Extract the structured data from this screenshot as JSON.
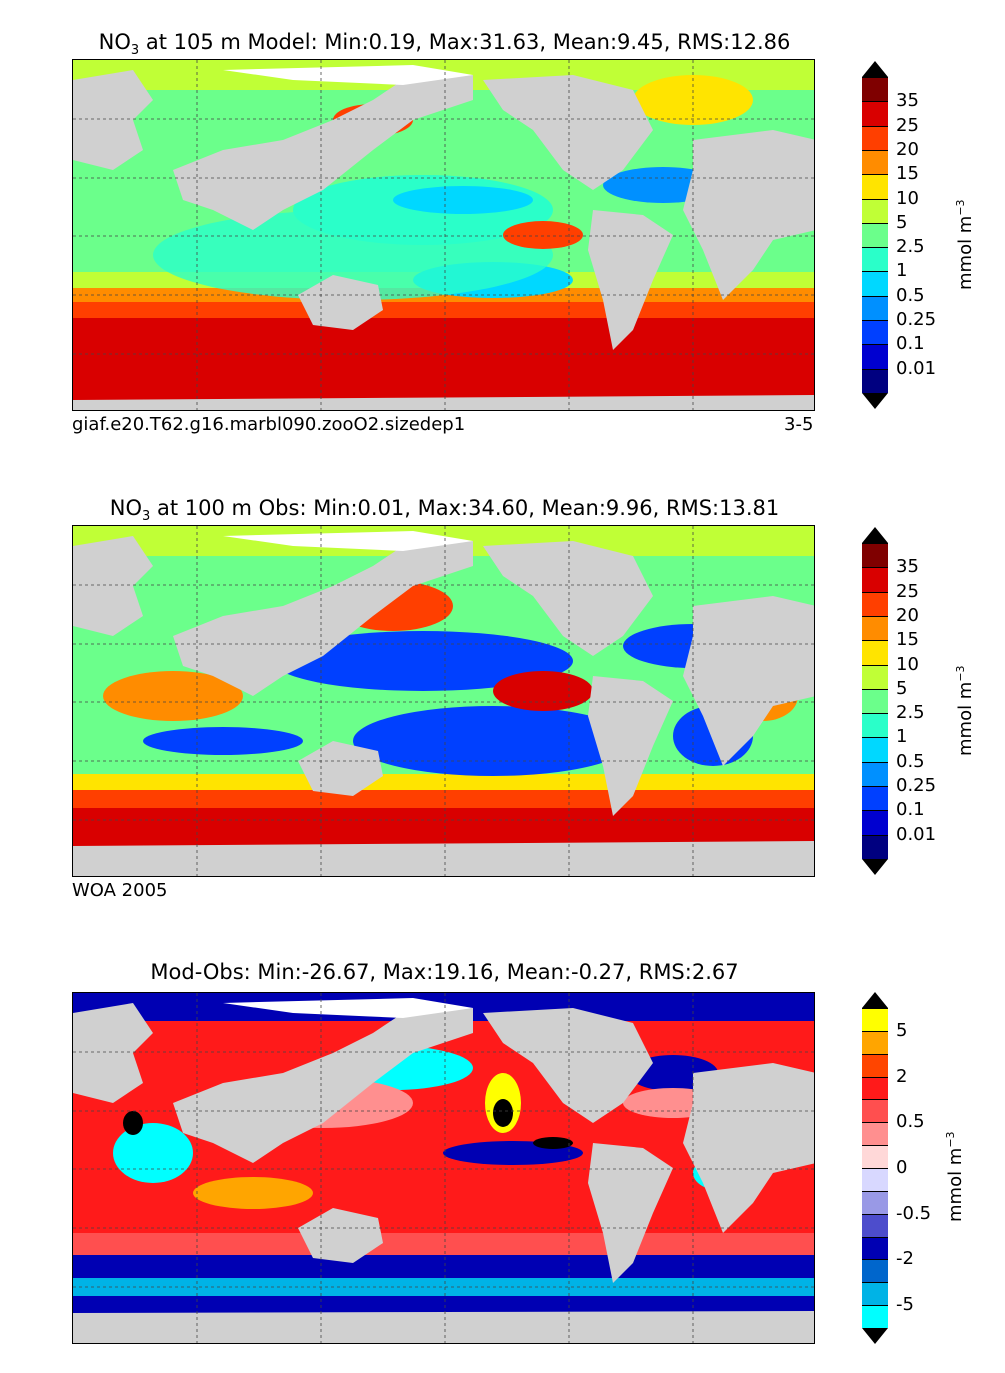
{
  "panels": [
    {
      "title_prefix": "NO",
      "title_sub": "3",
      "title_rest": " at 105 m Model: Min:0.19, Max:31.63, Mean:9.45, RMS:12.86",
      "caption_left": "giaf.e20.T62.g16.marbl090.zooO2.sizedep1",
      "caption_right": "3-5",
      "colorbar": {
        "ticks": [
          "35",
          "25",
          "20",
          "15",
          "10",
          "5",
          "2.5",
          "1",
          "0.5",
          "0.25",
          "0.1",
          "0.01"
        ],
        "colors": [
          "#7f0000",
          "#d90000",
          "#ff3f00",
          "#ff8c00",
          "#ffe400",
          "#c0ff36",
          "#6bff8b",
          "#2affc9",
          "#00d8ff",
          "#0090ff",
          "#0040ff",
          "#0000d0",
          "#000080"
        ],
        "unit": "mmol m",
        "unit_sup": "−3"
      }
    },
    {
      "title_prefix": "NO",
      "title_sub": "3",
      "title_rest": " at 100 m Obs: Min:0.01, Max:34.60, Mean:9.96, RMS:13.81",
      "caption_left": "WOA 2005",
      "caption_right": "",
      "colorbar": {
        "ticks": [
          "35",
          "25",
          "20",
          "15",
          "10",
          "5",
          "2.5",
          "1",
          "0.5",
          "0.25",
          "0.1",
          "0.01"
        ],
        "colors": [
          "#7f0000",
          "#d90000",
          "#ff3f00",
          "#ff8c00",
          "#ffe400",
          "#c0ff36",
          "#6bff8b",
          "#2affc9",
          "#00d8ff",
          "#0090ff",
          "#0040ff",
          "#0000d0",
          "#000080"
        ],
        "unit": "mmol m",
        "unit_sup": "−3"
      }
    },
    {
      "title_prefix": "",
      "title_sub": "",
      "title_rest": "Mod-Obs: Min:-26.67, Max:19.16, Mean:-0.27, RMS:2.67",
      "caption_left": "",
      "caption_right": "",
      "colorbar": {
        "ticks": [
          "5",
          "2",
          "0.5",
          "0",
          "-0.5",
          "-2",
          "-5"
        ],
        "colors": [
          "#ffff00",
          "#ffa500",
          "#ff4500",
          "#ff1a1a",
          "#ff4f4f",
          "#ff8f8f",
          "#ffd8d8",
          "#d8d8ff",
          "#9999e6",
          "#4d4dcc",
          "#0000b3",
          "#0066cc",
          "#00b3e6",
          "#00ffff"
        ],
        "unit": "mmol m",
        "unit_sup": "−3"
      }
    }
  ],
  "map_colors": {
    "land": "#d0d0d0",
    "ice": "#ffffff",
    "grid": "#444444"
  }
}
